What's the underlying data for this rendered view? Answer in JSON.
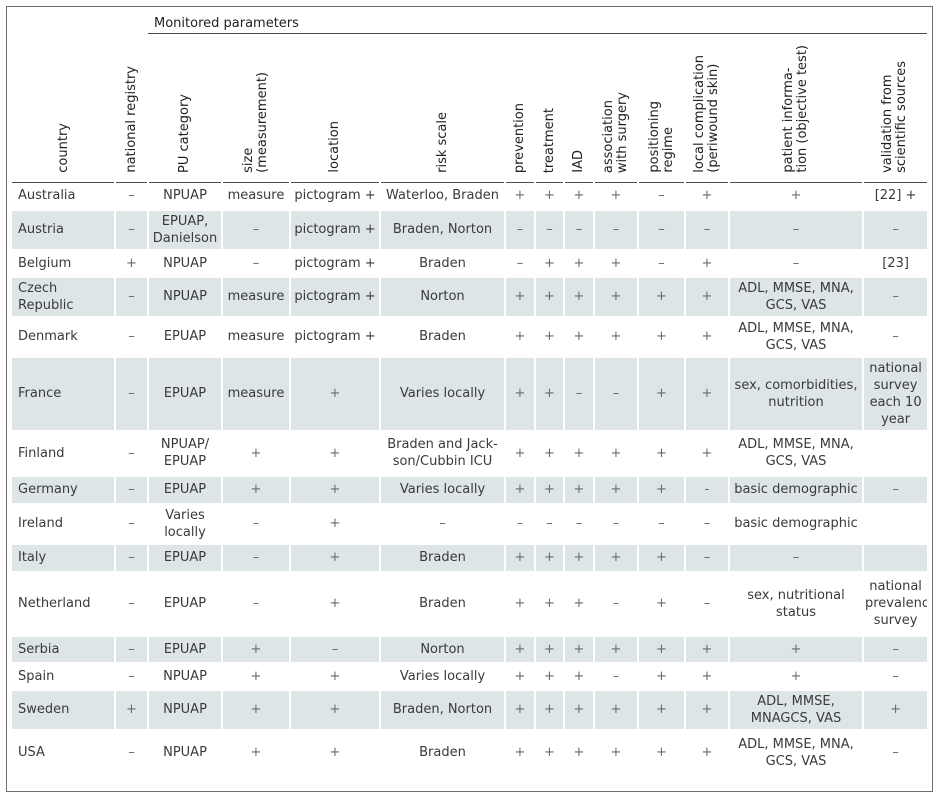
{
  "group_title": "Monitored parameters",
  "headers": [
    "country",
    "national registry",
    "PU category",
    "size\n(measurement)",
    "location",
    "risk scale",
    "prevention",
    "treatment",
    "IAD",
    "association\nwith surgery",
    "positioning\nregime",
    "local complication\n(periwound skin)",
    "patient informa-\ntion (objective test)",
    "validation from\nscientific sources"
  ],
  "rows": [
    {
      "country": "Australia",
      "cells": [
        "–",
        "NPUAP",
        "measure",
        "pictogram +",
        "Waterloo, Braden",
        "+",
        "+",
        "+",
        "+",
        "–",
        "+",
        "+",
        "[22] +"
      ]
    },
    {
      "country": "Austria",
      "cells": [
        "–",
        "EPUAP, Danielson",
        "–",
        "pictogram +",
        "Braden, Norton",
        "–",
        "–",
        "–",
        "–",
        "–",
        "–",
        "–",
        "–"
      ]
    },
    {
      "country": "Belgium",
      "cells": [
        "+",
        "NPUAP",
        "–",
        "pictogram +",
        "Braden",
        "–",
        "+",
        "+",
        "+",
        "–",
        "+",
        "–",
        "[23]"
      ]
    },
    {
      "country": "Czech Republic",
      "cells": [
        "–",
        "NPUAP",
        "measure",
        "pictogram +",
        "Norton",
        "+",
        "+",
        "+",
        "+",
        "+",
        "+",
        "ADL, MMSE, MNA, GCS, VAS",
        "–"
      ]
    },
    {
      "country": "Denmark",
      "cells": [
        "–",
        "EPUAP",
        "measure",
        "pictogram +",
        "Braden",
        "+",
        "+",
        "+",
        "+",
        "+",
        "+",
        "ADL, MMSE, MNA, GCS, VAS",
        "–"
      ]
    },
    {
      "country": "France",
      "cells": [
        "–",
        "EPUAP",
        "measure",
        "+",
        "Varies locally",
        "+",
        "+",
        "–",
        "–",
        "+",
        "+",
        "sex, comorbidities, nutrition",
        "national survey each 10 year"
      ]
    },
    {
      "country": "Finland",
      "cells": [
        "–",
        "NPUAP/ EPUAP",
        "+",
        "+",
        "Braden and Jack-son/Cubbin ICU",
        "+",
        "+",
        "+",
        "+",
        "+",
        "+",
        "ADL, MMSE, MNA, GCS, VAS",
        ""
      ]
    },
    {
      "country": "Germany",
      "cells": [
        "–",
        "EPUAP",
        "+",
        "+",
        "Varies locally",
        "+",
        "+",
        "+",
        "+",
        "+",
        "-",
        "basic demographic",
        "–"
      ]
    },
    {
      "country": "Ireland",
      "cells": [
        "–",
        "Varies locally",
        "–",
        "+",
        "–",
        "–",
        "–",
        "–",
        "–",
        "–",
        "–",
        "basic demographic",
        ""
      ]
    },
    {
      "country": "Italy",
      "cells": [
        "–",
        "EPUAP",
        "–",
        "+",
        "Braden",
        "+",
        "+",
        "+",
        "+",
        "+",
        "–",
        "–",
        ""
      ]
    },
    {
      "country": "Netherland",
      "cells": [
        "–",
        "EPUAP",
        "–",
        "+",
        "Braden",
        "+",
        "+",
        "+",
        "–",
        "+",
        "–",
        "sex, nutritional status",
        "national prevalence survey"
      ]
    },
    {
      "country": "Serbia",
      "cells": [
        "–",
        "EPUAP",
        "+",
        "–",
        "Norton",
        "+",
        "+",
        "+",
        "+",
        "+",
        "+",
        "+",
        "–"
      ]
    },
    {
      "country": "Spain",
      "cells": [
        "–",
        "NPUAP",
        "+",
        "+",
        "Varies locally",
        "+",
        "+",
        "+",
        "–",
        "+",
        "+",
        "+",
        "–"
      ]
    },
    {
      "country": "Sweden",
      "cells": [
        "+",
        "NPUAP",
        "+",
        "+",
        "Braden, Norton",
        "+",
        "+",
        "+",
        "+",
        "+",
        "+",
        "ADL, MMSE, MNAGCS, VAS",
        "+"
      ]
    },
    {
      "country": "USA",
      "cells": [
        "–",
        "NPUAP",
        "+",
        "+",
        "Braden",
        "+",
        "+",
        "+",
        "+",
        "+",
        "+",
        "ADL, MMSE, MNA, GCS, VAS",
        "–"
      ]
    }
  ]
}
